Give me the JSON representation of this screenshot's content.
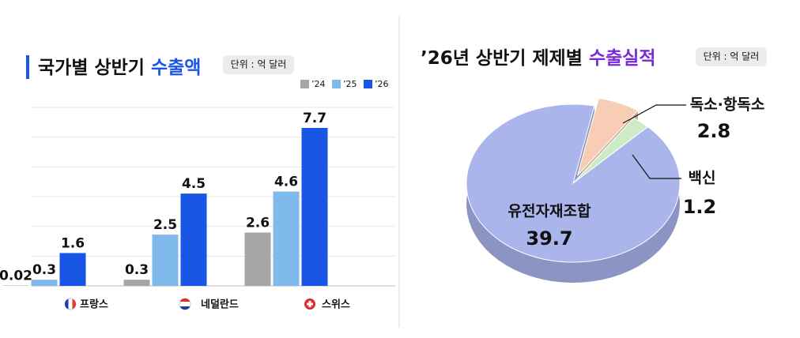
{
  "chart_data": [
    {
      "type": "bar",
      "title": "국가별 상반기",
      "title_highlight": "수출액",
      "unit": "단위 : 억 달러",
      "categories": [
        "프랑스",
        "네덜란드",
        "스위스"
      ],
      "series": [
        {
          "name": "’24",
          "color": "#a6a6a6",
          "values": [
            0.02,
            0.3,
            2.6
          ]
        },
        {
          "name": "’25",
          "color": "#80b9ec",
          "values": [
            0.3,
            2.5,
            4.6
          ]
        },
        {
          "name": "’26",
          "color": "#1a56e6",
          "values": [
            1.6,
            4.5,
            7.7
          ]
        }
      ],
      "ylim": [
        0,
        8.7
      ],
      "grid": true
    },
    {
      "type": "pie",
      "title": "’26년 상반기 제제별",
      "title_highlight": "수출실적",
      "unit": "단위 : 억 달러",
      "categories": [
        "독소·항독소",
        "백신",
        "유전자재조합"
      ],
      "values": [
        2.8,
        1.2,
        39.7
      ],
      "colors": [
        "#f8cdb6",
        "#cdebc6",
        "#aab5ec"
      ]
    }
  ]
}
